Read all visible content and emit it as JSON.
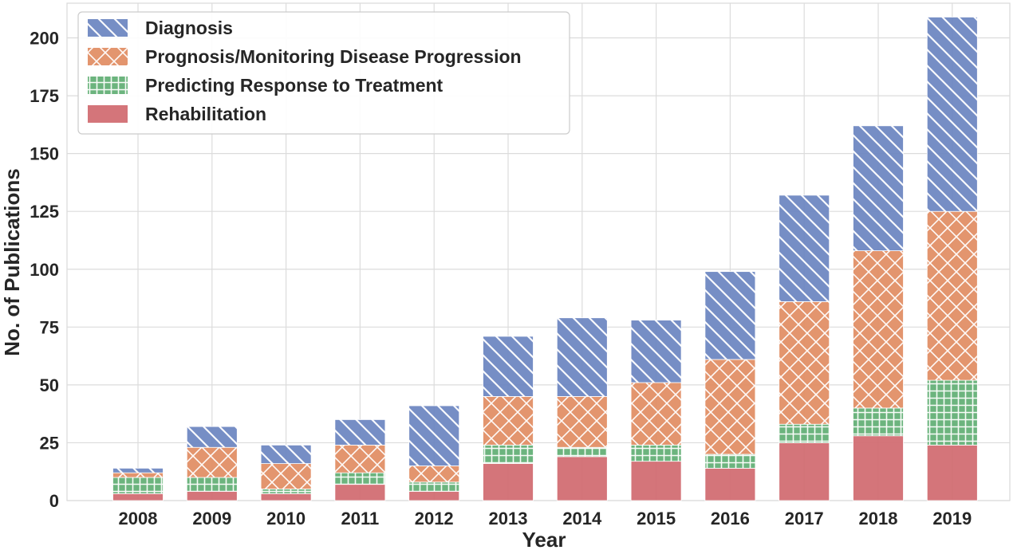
{
  "chart_data": {
    "type": "bar",
    "stacked": true,
    "title": "",
    "xlabel": "Year",
    "ylabel": "No. of Publications",
    "categories": [
      "2008",
      "2009",
      "2010",
      "2011",
      "2012",
      "2013",
      "2014",
      "2015",
      "2016",
      "2017",
      "2018",
      "2019"
    ],
    "ylim": [
      0,
      215
    ],
    "yticks": [
      0,
      25,
      50,
      75,
      100,
      125,
      150,
      175,
      200
    ],
    "grid": true,
    "legend_position": "top-left",
    "series": [
      {
        "name": "Rehabilitation",
        "color": "#d0696f",
        "hatch": "none",
        "values": [
          3,
          4,
          3,
          7,
          4,
          16,
          19,
          17,
          14,
          25,
          28,
          24
        ]
      },
      {
        "name": "Predicting Response to Treatment",
        "color": "#5fae73",
        "hatch": "grid",
        "values": [
          7,
          6,
          2,
          5,
          4,
          8,
          4,
          7,
          6,
          8,
          12,
          28
        ]
      },
      {
        "name": "Prognosis/Monitoring Disease Progression",
        "color": "#e18c62",
        "hatch": "cross",
        "values": [
          2,
          13,
          11,
          12,
          7,
          21,
          22,
          27,
          41,
          53,
          68,
          73
        ]
      },
      {
        "name": "Diagnosis",
        "color": "#6a84c0",
        "hatch": "diagonal",
        "values": [
          2,
          9,
          8,
          11,
          26,
          26,
          34,
          27,
          38,
          46,
          54,
          84
        ]
      }
    ],
    "legend_order": [
      "Diagnosis",
      "Prognosis/Monitoring Disease Progression",
      "Predicting Response to Treatment",
      "Rehabilitation"
    ]
  }
}
